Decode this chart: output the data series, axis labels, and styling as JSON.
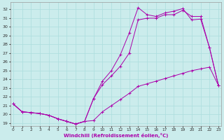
{
  "xlabel": "Windchill (Refroidissement éolien,°C)",
  "background_color": "#cbecec",
  "grid_color": "#aadddd",
  "line_color": "#aa00aa",
  "x_ticks": [
    0,
    1,
    2,
    3,
    4,
    5,
    6,
    7,
    8,
    9,
    10,
    11,
    12,
    13,
    14,
    15,
    16,
    17,
    18,
    19,
    20,
    21,
    22,
    23
  ],
  "y_ticks": [
    19,
    20,
    21,
    22,
    23,
    24,
    25,
    26,
    27,
    28,
    29,
    30,
    31,
    32
  ],
  "ylim": [
    18.7,
    32.8
  ],
  "xlim": [
    -0.3,
    23.3
  ],
  "line1_x": [
    0,
    1,
    2,
    3,
    4,
    5,
    6,
    7,
    8,
    9,
    10,
    11,
    12,
    13,
    14,
    15,
    16,
    17,
    18,
    19,
    20,
    21,
    22,
    23
  ],
  "line1_y": [
    21.2,
    20.3,
    20.2,
    20.1,
    19.9,
    19.5,
    19.2,
    18.9,
    19.2,
    21.8,
    23.8,
    25.0,
    26.8,
    29.3,
    32.2,
    31.4,
    31.2,
    31.6,
    31.8,
    32.1,
    30.8,
    30.9,
    27.6,
    23.3
  ],
  "line2_x": [
    0,
    1,
    2,
    3,
    4,
    5,
    6,
    7,
    8,
    9,
    10,
    11,
    12,
    13,
    14,
    15,
    16,
    17,
    18,
    19,
    20,
    21,
    22,
    23
  ],
  "line2_y": [
    21.2,
    20.3,
    20.2,
    20.1,
    19.9,
    19.5,
    19.2,
    18.9,
    19.2,
    21.8,
    23.4,
    24.4,
    25.5,
    27.0,
    30.8,
    31.0,
    31.0,
    31.4,
    31.4,
    31.9,
    31.2,
    31.2,
    27.6,
    23.3
  ],
  "line3_x": [
    0,
    1,
    2,
    3,
    4,
    5,
    6,
    7,
    8,
    9,
    10,
    11,
    12,
    13,
    14,
    15,
    16,
    17,
    18,
    19,
    20,
    21,
    22,
    23
  ],
  "line3_y": [
    21.2,
    20.3,
    20.2,
    20.1,
    19.9,
    19.5,
    19.2,
    18.9,
    19.2,
    19.3,
    20.3,
    21.0,
    21.7,
    22.4,
    23.2,
    23.5,
    23.8,
    24.1,
    24.4,
    24.7,
    25.0,
    25.2,
    25.4,
    23.3
  ]
}
